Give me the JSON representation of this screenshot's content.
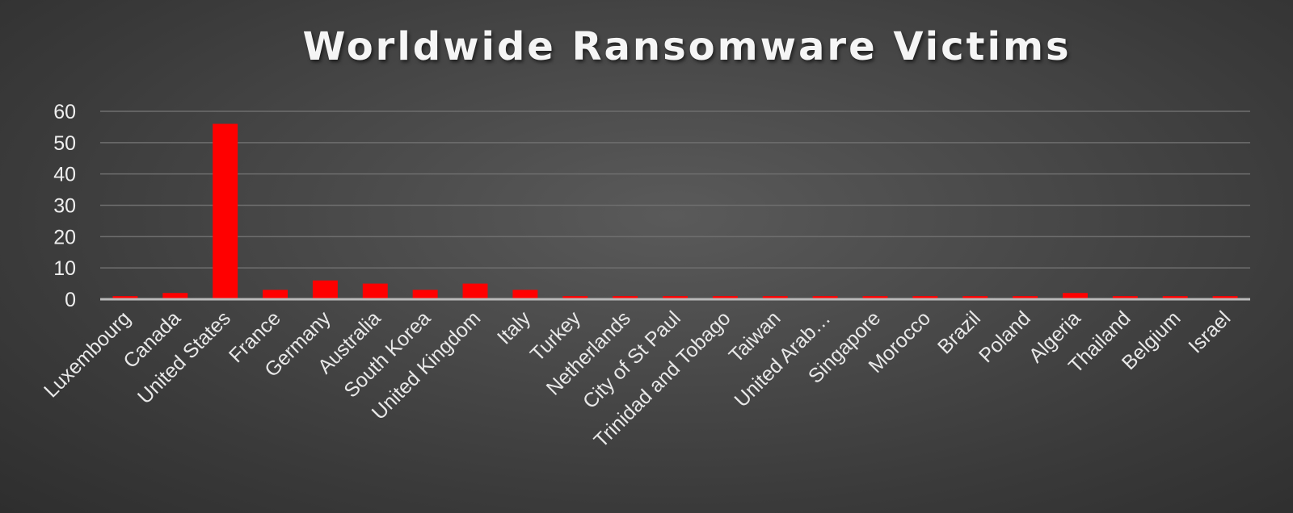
{
  "colors": {
    "bar": "#ff0000",
    "grid": "#6e6e6e",
    "axis": "#b9b9b9"
  },
  "chart_data": {
    "type": "bar",
    "title": "Worldwide Ransomware Victims",
    "xlabel": "",
    "ylabel": "",
    "ylim": [
      0,
      60
    ],
    "yticks": [
      0,
      10,
      20,
      30,
      40,
      50,
      60
    ],
    "grid": true,
    "legend": "none",
    "categories": [
      "Luxembourg",
      "Canada",
      "United States",
      "France",
      "Germany",
      "Australia",
      "South Korea",
      "United Kingdom",
      "Italy",
      "Turkey",
      "Netherlands",
      "City of St Paul",
      "Trinidad and Tobago",
      "Taiwan",
      "United Arab…",
      "Singapore",
      "Morocco",
      "Brazil",
      "Poland",
      "Algeria",
      "Thailand",
      "Belgium",
      "Israel"
    ],
    "values": [
      1,
      2,
      56,
      3,
      6,
      5,
      3,
      5,
      3,
      1,
      1,
      1,
      1,
      1,
      1,
      1,
      1,
      1,
      1,
      2,
      1,
      1,
      1
    ]
  }
}
